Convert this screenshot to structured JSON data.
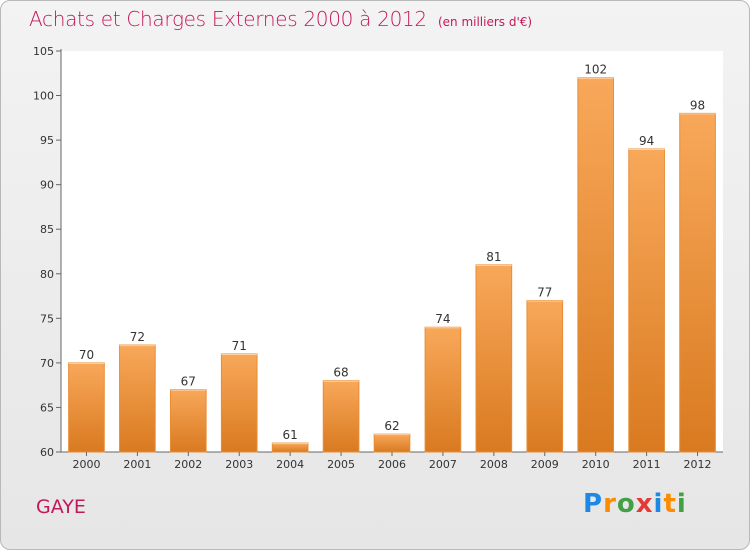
{
  "header": {
    "title": "Achats et Charges Externes 2000 à 2012",
    "unit": "(en milliers d'€)"
  },
  "commune": "GAYE",
  "logo": {
    "letters": [
      "P",
      "r",
      "o",
      "x",
      "i",
      "t",
      "i"
    ],
    "colors": [
      "#1e88e5",
      "#fb8c00",
      "#43a047",
      "#e53935",
      "#1e88e5",
      "#fb8c00",
      "#43a047"
    ]
  },
  "colors": {
    "bar_light": "#f8a85a",
    "bar_dark": "#d97a20",
    "title": "#c2185b"
  },
  "chart_data": {
    "type": "bar",
    "categories": [
      "2000",
      "2001",
      "2002",
      "2003",
      "2004",
      "2005",
      "2006",
      "2007",
      "2008",
      "2009",
      "2010",
      "2011",
      "2012"
    ],
    "values": [
      70,
      72,
      67,
      71,
      61,
      68,
      62,
      74,
      81,
      77,
      102,
      94,
      98
    ],
    "ylim": [
      60,
      105
    ],
    "yticks": [
      60,
      65,
      70,
      75,
      80,
      85,
      90,
      95,
      100,
      105
    ],
    "grid": false,
    "legend": "none"
  }
}
